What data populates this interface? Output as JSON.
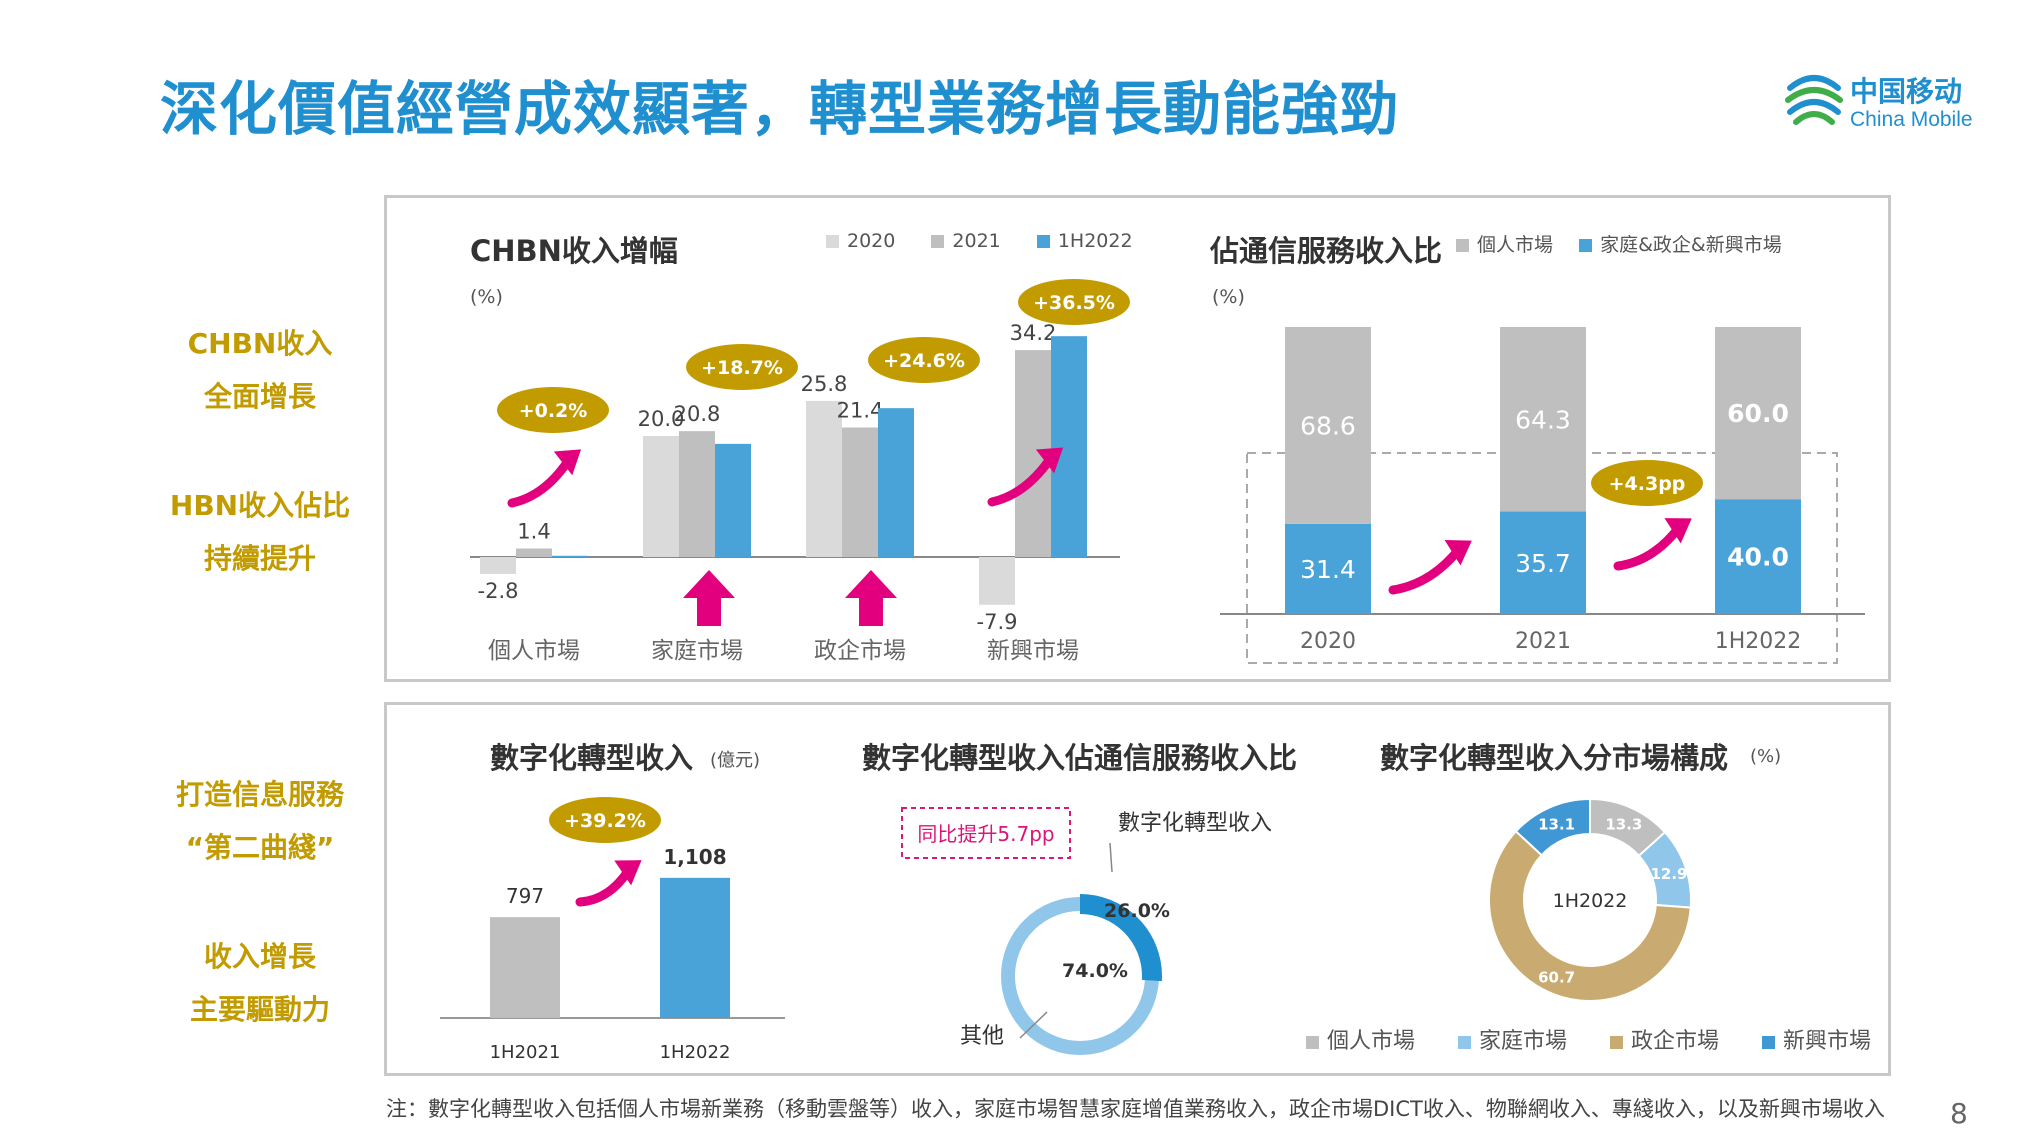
{
  "title": "深化價值經營成效顯著，轉型業務增長動能強勁",
  "logo": {
    "cn": "中国移动",
    "en": "China Mobile"
  },
  "sidebar": {
    "chbn_line1": "CHBN收入",
    "chbn_line2": "全面增長",
    "hbn_line1": "HBN收入佔比",
    "hbn_line2": "持續提升",
    "info_line1": "打造信息服務",
    "info_line2": "“第二曲綫”",
    "growth_line1": "收入增長",
    "growth_line2": "主要驅動力"
  },
  "chart1_unit": "(%)",
  "chart2_unit": "(%)",
  "chart3_unit": "(億元)",
  "chart5_unit": "(%)",
  "chart_data": [
    {
      "type": "bar",
      "title": "CHBN收入增幅",
      "ylabel": "(%)",
      "categories": [
        "個人市場",
        "家庭市場",
        "政企市場",
        "新興市場"
      ],
      "series": [
        {
          "name": "2020",
          "values": [
            -2.8,
            20.0,
            25.8,
            -7.9
          ],
          "color": "#dadada"
        },
        {
          "name": "2021",
          "values": [
            1.4,
            20.8,
            21.4,
            34.2
          ],
          "color": "#bfbfbf"
        },
        {
          "name": "1H2022",
          "values": [
            0.2,
            18.7,
            24.6,
            36.5
          ],
          "color": "#4aa3d8"
        }
      ],
      "data_labels": [
        [
          "-2.8",
          "1.4",
          ""
        ],
        [
          "20.0",
          "20.8",
          ""
        ],
        [
          "25.8",
          "21.4",
          ""
        ],
        [
          "-7.9",
          "34.2",
          ""
        ]
      ],
      "badges": [
        "+0.2%",
        "+18.7%",
        "+24.6%",
        "+36.5%"
      ],
      "legend_position": "top-right"
    },
    {
      "type": "bar",
      "stacked": true,
      "title": "佔通信服務收入比",
      "ylabel": "(%)",
      "categories": [
        "2020",
        "2021",
        "1H2022"
      ],
      "series": [
        {
          "name": "家庭&政企&新興市場",
          "values": [
            31.4,
            35.7,
            40.0
          ],
          "color": "#4aa3d8"
        },
        {
          "name": "個人市場",
          "values": [
            68.6,
            64.3,
            60.0
          ],
          "color": "#bfbfbf"
        }
      ],
      "badge": "+4.3pp",
      "legend_position": "top-right"
    },
    {
      "type": "bar",
      "title": "數字化轉型收入",
      "ylabel": "(億元)",
      "categories": [
        "1H2021",
        "1H2022"
      ],
      "values": [
        797,
        1108
      ],
      "value_labels": [
        "797",
        "1,108"
      ],
      "colors": [
        "#bfbfbf",
        "#4aa3d8"
      ],
      "badge": "+39.2%"
    },
    {
      "type": "pie",
      "title": "數字化轉型收入佔通信服務收入比",
      "labels": [
        "數字化轉型收入",
        "其他"
      ],
      "values": [
        26.0,
        74.0
      ],
      "value_labels": [
        "26.0%",
        "74.0%"
      ],
      "colors": [
        "#1f8fd0",
        "#8fc6ea"
      ],
      "callout": "同比提升5.7pp"
    },
    {
      "type": "pie",
      "title": "數字化轉型收入分市場構成",
      "ylabel": "(%)",
      "center_label": "1H2022",
      "labels": [
        "個人市場",
        "家庭市場",
        "政企市場",
        "新興市場"
      ],
      "values": [
        13.3,
        12.9,
        60.7,
        13.1
      ],
      "colors": [
        "#bfbfbf",
        "#8fc6ea",
        "#c9ab72",
        "#3f97d3"
      ]
    }
  ],
  "footnote": "注：數字化轉型收入包括個人市場新業務（移動雲盤等）收入，家庭市場智慧家庭增值業務收入，政企市場DICT收入、物聯網收入、專綫收入，以及新興市場收入",
  "page_number": "8",
  "colors": {
    "accent": "#1f8fd0",
    "gold": "#c29b00",
    "badge": "#c29b00",
    "arrow": "#e3007f"
  }
}
